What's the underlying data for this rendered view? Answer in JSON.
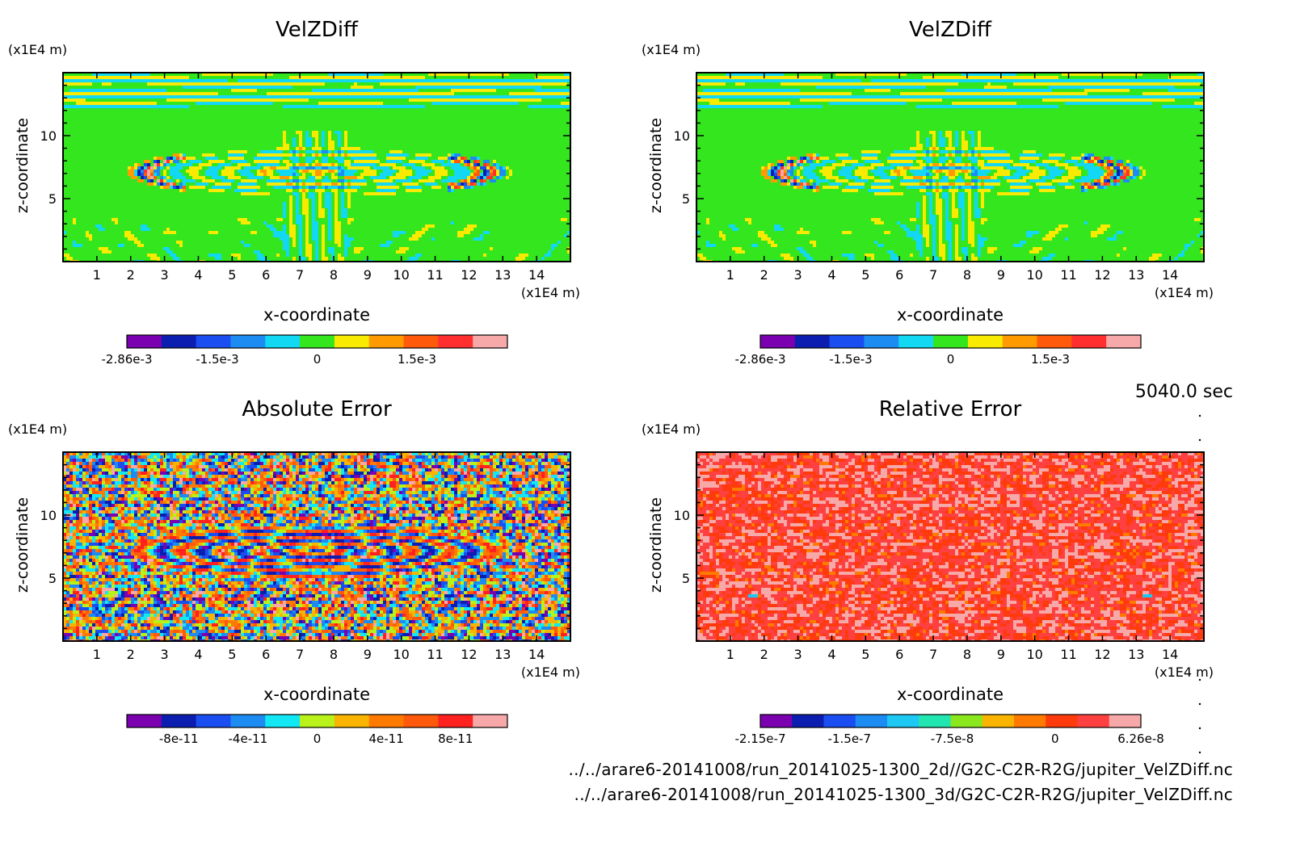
{
  "time_label": "5040.0 sec",
  "files": [
    "../../arare6-20141008/run_20141025-1300_2d//G2C-C2R-R2G/jupiter_VelZDiff.nc",
    "../../arare6-20141008/run_20141025-1300_3d/G2C-C2R-R2G/jupiter_VelZDiff.nc"
  ],
  "chart_data": [
    {
      "type": "heatmap",
      "title": "VelZDiff",
      "xlabel": "x-coordinate",
      "ylabel": "z-coordinate",
      "x_unit": "(x1E4 m)",
      "y_unit": "(x1E4 m)",
      "xlim": [
        0,
        15
      ],
      "ylim": [
        0,
        15
      ],
      "x_ticks": [
        "1",
        "2",
        "3",
        "4",
        "5",
        "6",
        "7",
        "8",
        "9",
        "10",
        "11",
        "12",
        "13",
        "14"
      ],
      "y_ticks": [
        "5",
        "10"
      ],
      "pattern": "velocity",
      "colorbar": {
        "colors": [
          "#7a00b0",
          "#0c1eb0",
          "#1b4ef0",
          "#1d8cf2",
          "#12d8f4",
          "#33e61d",
          "#f8ea00",
          "#ff9b00",
          "#ff5a0c",
          "#ff2f2f",
          "#f7a8a8"
        ],
        "labels": [
          "-2.86e-3",
          "-1.5e-3",
          "0",
          "1.5e-3"
        ],
        "label_values": [
          -0.00286,
          -0.0015,
          0,
          0.0015
        ],
        "range": [
          -0.00286,
          0.00286
        ]
      }
    },
    {
      "type": "heatmap",
      "title": "VelZDiff",
      "xlabel": "x-coordinate",
      "ylabel": "z-coordinate",
      "x_unit": "(x1E4 m)",
      "y_unit": "(x1E4 m)",
      "xlim": [
        0,
        15
      ],
      "ylim": [
        0,
        15
      ],
      "x_ticks": [
        "1",
        "2",
        "3",
        "4",
        "5",
        "6",
        "7",
        "8",
        "9",
        "10",
        "11",
        "12",
        "13",
        "14"
      ],
      "y_ticks": [
        "5",
        "10"
      ],
      "pattern": "velocity",
      "colorbar": {
        "colors": [
          "#7a00b0",
          "#0c1eb0",
          "#1b4ef0",
          "#1d8cf2",
          "#12d8f4",
          "#33e61d",
          "#f8ea00",
          "#ff9b00",
          "#ff5a0c",
          "#ff2f2f",
          "#f7a8a8"
        ],
        "labels": [
          "-2.86e-3",
          "-1.5e-3",
          "0",
          "1.5e-3"
        ],
        "label_values": [
          -0.00286,
          -0.0015,
          0,
          0.0015
        ],
        "range": [
          -0.00286,
          0.00286
        ]
      }
    },
    {
      "type": "heatmap",
      "title": "Absolute Error",
      "xlabel": "x-coordinate",
      "ylabel": "z-coordinate",
      "x_unit": "(x1E4 m)",
      "y_unit": "(x1E4 m)",
      "xlim": [
        0,
        15
      ],
      "ylim": [
        0,
        15
      ],
      "x_ticks": [
        "1",
        "2",
        "3",
        "4",
        "5",
        "6",
        "7",
        "8",
        "9",
        "10",
        "11",
        "12",
        "13",
        "14"
      ],
      "y_ticks": [
        "5",
        "10"
      ],
      "pattern": "abs_error",
      "colorbar": {
        "colors": [
          "#7a00b0",
          "#0c1eb0",
          "#1b4ef0",
          "#1d8cf2",
          "#12e8f4",
          "#b8f21a",
          "#f8b400",
          "#ff7a00",
          "#ff5a0c",
          "#ff2020",
          "#f7a8a8"
        ],
        "labels": [
          "-8e-11",
          "-4e-11",
          "0",
          "4e-11",
          "8e-11"
        ],
        "label_values": [
          -8e-11,
          -4e-11,
          0,
          4e-11,
          8e-11
        ],
        "range": [
          -1.1e-10,
          1.1e-10
        ]
      }
    },
    {
      "type": "heatmap",
      "title": "Relative Error",
      "xlabel": "x-coordinate",
      "ylabel": "z-coordinate",
      "x_unit": "(x1E4 m)",
      "y_unit": "(x1E4 m)",
      "xlim": [
        0,
        15
      ],
      "ylim": [
        0,
        15
      ],
      "x_ticks": [
        "1",
        "2",
        "3",
        "4",
        "5",
        "6",
        "7",
        "8",
        "9",
        "10",
        "11",
        "12",
        "13",
        "14"
      ],
      "y_ticks": [
        "5",
        "10"
      ],
      "pattern": "rel_error",
      "colorbar": {
        "colors": [
          "#7a00b0",
          "#0c1eb0",
          "#1b4ef0",
          "#1d8cf2",
          "#1dc8f2",
          "#22e6b0",
          "#8ae61d",
          "#f8b400",
          "#ff7a00",
          "#ff3a0c",
          "#ff4040",
          "#f7a8a8"
        ],
        "labels": [
          "-2.15e-7",
          "-1.5e-7",
          "-7.5e-8",
          "0",
          "6.26e-8"
        ],
        "label_values": [
          -2.15e-07,
          -1.5e-07,
          -7.5e-08,
          0,
          6.26e-08
        ],
        "range": [
          -2.15e-07,
          6.26e-08
        ]
      }
    }
  ]
}
